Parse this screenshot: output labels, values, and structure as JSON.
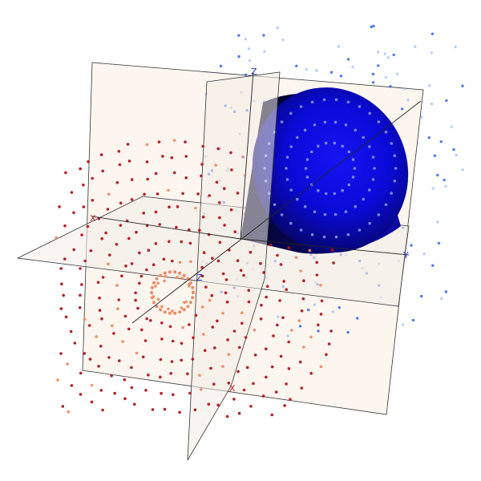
{
  "scene": {
    "background": "#ffffff",
    "plane_fill": "#fbf3ea",
    "plane_fill_horizontal": "#f1ede9",
    "plane_stroke": "#333333",
    "axis_labels": {
      "x": "X",
      "y": "Y",
      "z": "Z",
      "origin": "Z"
    },
    "colors": {
      "x_axis": "#cc2222",
      "y_axis": "#2233cc",
      "z_axis": "#2233cc",
      "cloud_red": "#b0141f",
      "cloud_salmon": "#ef8a62",
      "cloud_blue": "#3f6ee8",
      "cloud_light_blue": "#9db9f2",
      "cone_dark": "#0a0a6e",
      "cone_bright": "#1111ee",
      "cone_ring_dots": "#8a9cf0"
    }
  }
}
